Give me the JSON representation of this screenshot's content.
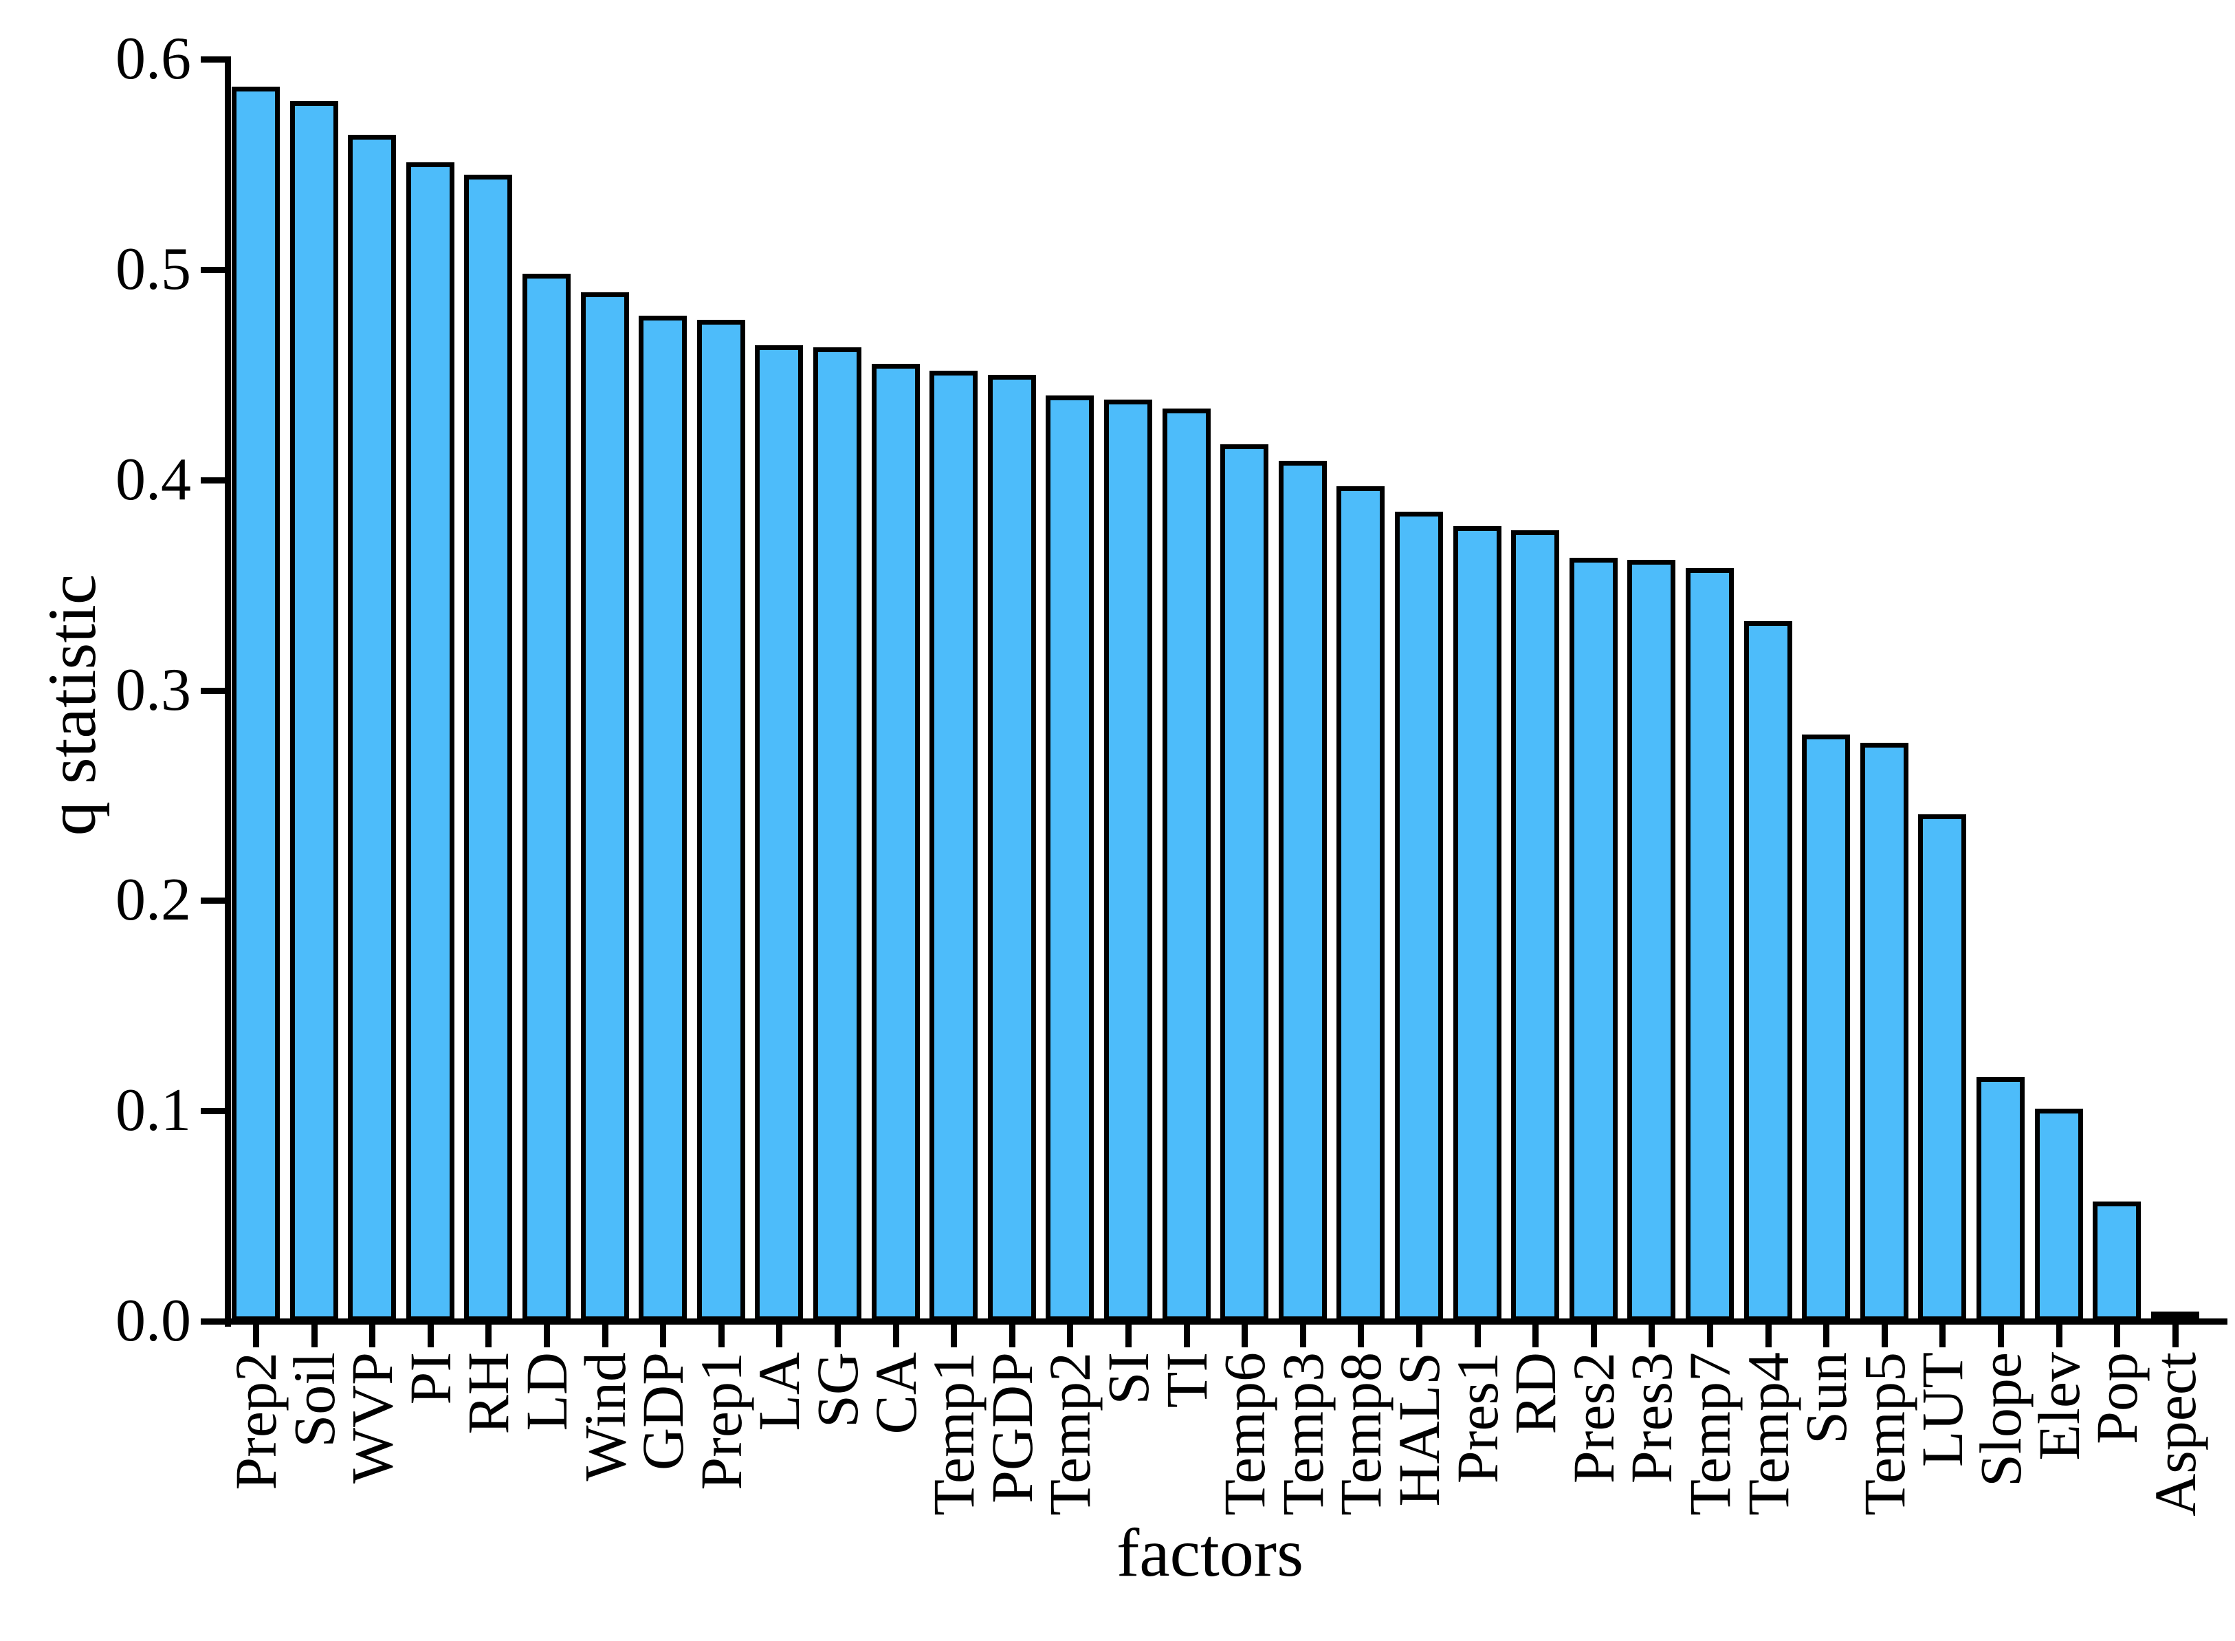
{
  "chart_data": {
    "type": "bar",
    "title": "",
    "xlabel": "factors",
    "ylabel": "q statistic",
    "categories": [
      "Prep2",
      "Soil",
      "WVP",
      "PI",
      "RH",
      "LD",
      "Wind",
      "GDP",
      "Prep1",
      "LA",
      "SG",
      "CA",
      "Temp1",
      "PGDP",
      "Temp2",
      "SI",
      "TI",
      "Temp6",
      "Temp3",
      "Temp8",
      "HALS",
      "Pres1",
      "RD",
      "Pres2",
      "Pres3",
      "Temp7",
      "Temp4",
      "Sun",
      "Temp5",
      "LUT",
      "Slope",
      "Elev",
      "Pop",
      "Aspect"
    ],
    "values": [
      0.587,
      0.58,
      0.564,
      0.551,
      0.545,
      0.498,
      0.489,
      0.478,
      0.476,
      0.464,
      0.463,
      0.455,
      0.452,
      0.45,
      0.44,
      0.438,
      0.434,
      0.417,
      0.409,
      0.397,
      0.385,
      0.378,
      0.376,
      0.363,
      0.362,
      0.358,
      0.333,
      0.279,
      0.275,
      0.241,
      0.116,
      0.101,
      0.057,
      0.003
    ],
    "ylim": [
      0.0,
      0.6
    ],
    "yticks": [
      0.0,
      0.1,
      0.2,
      0.3,
      0.4,
      0.5,
      0.6
    ],
    "ytick_labels": [
      "0.0",
      "0.1",
      "0.2",
      "0.3",
      "0.4",
      "0.5",
      "0.6"
    ],
    "bar_color": "#4DBCFA",
    "bar_border_color": "#000000",
    "axis_color": "#000000",
    "grid": false,
    "legend": null
  }
}
